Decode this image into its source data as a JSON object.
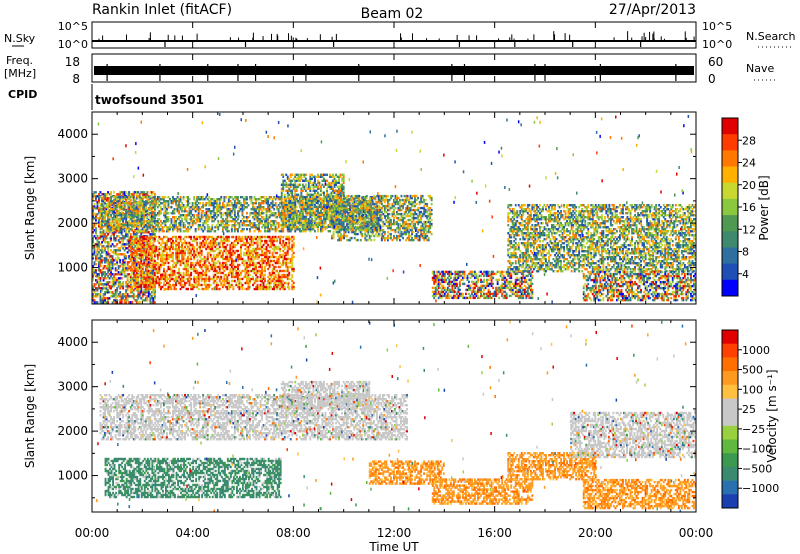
{
  "header": {
    "station": "Rankin Inlet (fitACF)",
    "beam": "Beam 02",
    "date": "27/Apr/2013"
  },
  "strip_panels": {
    "nsky_label": "N.Sky",
    "nsky_ticks": [
      "10^5",
      "10^0"
    ],
    "nsearch_label": "N.Search",
    "nsearch_ticks": [
      "10^5",
      "10^0"
    ],
    "freq_label_line1": "Freq.",
    "freq_label_line2": "[MHz]",
    "freq_ticks": [
      "18",
      "8"
    ],
    "nave_label": "Nave",
    "nave_ticks": [
      "60",
      "0"
    ],
    "cpid_label": "CPID",
    "cpid_value": "twofsound 3501"
  },
  "chart_data": [
    {
      "type": "heatmap",
      "quantity": "power",
      "ylabel": "Slant Range [km]",
      "yticks": [
        "4000",
        "3000",
        "2000",
        "1000"
      ],
      "ylim": [
        180,
        4500
      ],
      "colorbar_label": "Power [dB]",
      "colorbar_ticks": [
        "28",
        "24",
        "20",
        "16",
        "12",
        "8",
        "4"
      ],
      "colorbar_colors": [
        "#0000ff",
        "#1f4fb4",
        "#2f6fa0",
        "#3f8a6e",
        "#4f9a50",
        "#8ac840",
        "#c8d830",
        "#ffb000",
        "#ff7800",
        "#ff3c00",
        "#e00000"
      ],
      "regions": [
        {
          "t0": 0.0,
          "t1": 2.5,
          "r0": 200,
          "r1": 2700,
          "level": "mixed"
        },
        {
          "t0": 1.5,
          "t1": 8.0,
          "r0": 500,
          "r1": 1700,
          "level": "high"
        },
        {
          "t0": 0.3,
          "t1": 11.5,
          "r0": 1800,
          "r1": 2600,
          "level": "mid"
        },
        {
          "t0": 7.5,
          "t1": 10.0,
          "r0": 1900,
          "r1": 3100,
          "level": "mid"
        },
        {
          "t0": 9.5,
          "t1": 13.5,
          "r0": 1600,
          "r1": 2600,
          "level": "mid"
        },
        {
          "t0": 13.5,
          "t1": 17.5,
          "r0": 300,
          "r1": 900,
          "level": "mixed"
        },
        {
          "t0": 16.5,
          "t1": 24.0,
          "r0": 900,
          "r1": 2400,
          "level": "mid"
        },
        {
          "t0": 19.5,
          "t1": 24.0,
          "r0": 250,
          "r1": 900,
          "level": "mixed"
        }
      ]
    },
    {
      "type": "heatmap",
      "quantity": "velocity",
      "xlabel": "Time UT",
      "xticks": [
        "00:00",
        "04:00",
        "08:00",
        "12:00",
        "16:00",
        "20:00",
        "00:00"
      ],
      "xlim": [
        0,
        24
      ],
      "ylabel": "Slant Range [km]",
      "yticks": [
        "4000",
        "3000",
        "2000",
        "1000"
      ],
      "ylim": [
        180,
        4500
      ],
      "colorbar_label": "Velocity [m s⁻¹]",
      "colorbar_ticks": [
        "1000",
        "500",
        "100",
        "25",
        "−25",
        "−100",
        "−500",
        "−1000"
      ],
      "colorbar_colors": [
        "#1c3fb0",
        "#2870b0",
        "#3a8a70",
        "#3c9a50",
        "#60b840",
        "#9ad040",
        "#c8c8c8",
        "#c8c8c8",
        "#ffc040",
        "#ff9a20",
        "#ff7000",
        "#ff4000",
        "#e00000"
      ],
      "regions": [
        {
          "t0": 0.3,
          "t1": 12.5,
          "r0": 1800,
          "r1": 2800,
          "level": "gray"
        },
        {
          "t0": 7.5,
          "t1": 11.0,
          "r0": 2500,
          "r1": 3100,
          "level": "gray"
        },
        {
          "t0": 0.5,
          "t1": 7.5,
          "r0": 500,
          "r1": 1400,
          "level": "green"
        },
        {
          "t0": 11.0,
          "t1": 14.0,
          "r0": 800,
          "r1": 1300,
          "level": "orange"
        },
        {
          "t0": 13.5,
          "t1": 17.5,
          "r0": 350,
          "r1": 900,
          "level": "orange"
        },
        {
          "t0": 16.5,
          "t1": 20.0,
          "r0": 900,
          "r1": 1500,
          "level": "orange"
        },
        {
          "t0": 19.5,
          "t1": 24.0,
          "r0": 250,
          "r1": 900,
          "level": "orange"
        },
        {
          "t0": 19.0,
          "t1": 24.0,
          "r0": 1400,
          "r1": 2400,
          "level": "gray"
        }
      ]
    }
  ]
}
